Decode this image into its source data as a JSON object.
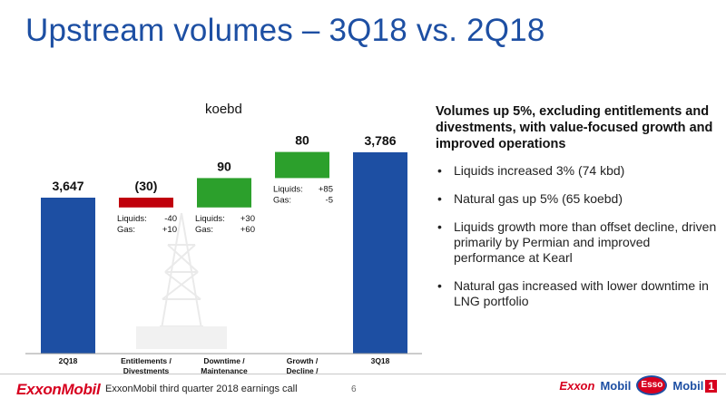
{
  "title": "Upstream volumes – 3Q18 vs. 2Q18",
  "chart_data": {
    "type": "waterfall",
    "unit": "koebd",
    "ylim": [
      0,
      3800
    ],
    "colors": {
      "total": "#1d4fa3",
      "decrease": "#c0000c",
      "increase": "#2ca02c"
    },
    "steps": [
      {
        "category": "2Q18",
        "label": "3,647",
        "kind": "total",
        "value": 3647,
        "details": []
      },
      {
        "category": "Entitlements / Divestments",
        "label": "(30)",
        "kind": "decrease",
        "value": -30,
        "details": [
          {
            "name": "Liquids:",
            "value": "-40"
          },
          {
            "name": "Gas:",
            "value": "+10"
          }
        ]
      },
      {
        "category": "Downtime / Maintenance",
        "label": "90",
        "kind": "increase",
        "value": 90,
        "details": [
          {
            "name": "Liquids:",
            "value": "+30"
          },
          {
            "name": "Gas:",
            "value": "+60"
          }
        ]
      },
      {
        "category": "Growth / Decline / Other",
        "label": "80",
        "kind": "increase",
        "value": 80,
        "details": [
          {
            "name": "Liquids:",
            "value": "+85"
          },
          {
            "name": "Gas:",
            "value": "-5"
          }
        ]
      },
      {
        "category": "3Q18",
        "label": "3,786",
        "kind": "total",
        "value": 3786,
        "details": []
      }
    ]
  },
  "summary": {
    "headline": "Volumes up 5%, excluding entitlements and divestments, with value-focused growth and improved operations",
    "bullets": [
      "Liquids increased 3% (74 kbd)",
      "Natural gas up 5% (65 koebd)",
      "Liquids growth more than offset decline, driven primarily by Permian and improved performance at Kearl",
      "Natural gas increased with lower downtime in LNG portfolio"
    ],
    "bullet_glyph": "•"
  },
  "footer": {
    "logo_text": "ExxonMobil",
    "text": "ExxonMobil third quarter 2018 earnings call",
    "page_number": "6",
    "brands": {
      "exxon": "Exxon",
      "mobil": "Mobil",
      "esso": "Esso",
      "mobil1": "Mobil",
      "mobil1_suffix": "1"
    }
  }
}
